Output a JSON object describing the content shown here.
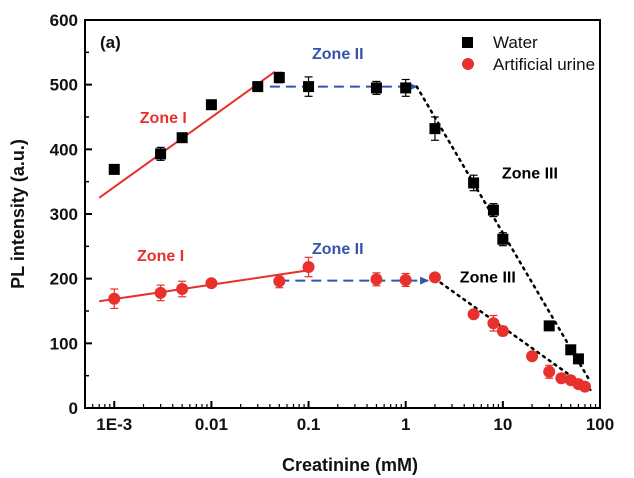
{
  "chart_data": {
    "type": "scatter",
    "panel_label": "(a)",
    "title": "",
    "xlabel": "Creatinine (mM)",
    "ylabel": "PL intensity (a.u.)",
    "xscale": "log",
    "xlim": [
      0.0005,
      100
    ],
    "ylim": [
      0,
      600
    ],
    "x_ticks": [
      0.001,
      0.01,
      0.1,
      1,
      10,
      100
    ],
    "x_tick_labels": [
      "1E-3",
      "0.01",
      "0.1",
      "1",
      "10",
      "100"
    ],
    "y_ticks": [
      0,
      100,
      200,
      300,
      400,
      500,
      600
    ],
    "y_tick_labels": [
      "0",
      "100",
      "200",
      "300",
      "400",
      "500",
      "600"
    ],
    "grid": false,
    "legend_position": "top-right",
    "series": [
      {
        "name": "Water",
        "color": "#000000",
        "marker": "square",
        "points": [
          {
            "x": 0.001,
            "y": 369,
            "err": 0
          },
          {
            "x": 0.003,
            "y": 393,
            "err": 10
          },
          {
            "x": 0.005,
            "y": 418,
            "err": 0
          },
          {
            "x": 0.01,
            "y": 469,
            "err": 0
          },
          {
            "x": 0.03,
            "y": 497,
            "err": 0
          },
          {
            "x": 0.05,
            "y": 511,
            "err": 8
          },
          {
            "x": 0.1,
            "y": 497,
            "err": 15
          },
          {
            "x": 0.5,
            "y": 495,
            "err": 10
          },
          {
            "x": 1,
            "y": 495,
            "err": 13
          },
          {
            "x": 2,
            "y": 432,
            "err": 18
          },
          {
            "x": 5,
            "y": 348,
            "err": 12
          },
          {
            "x": 8,
            "y": 306,
            "err": 10
          },
          {
            "x": 10,
            "y": 261,
            "err": 10
          },
          {
            "x": 30,
            "y": 127,
            "err": 0
          },
          {
            "x": 50,
            "y": 90,
            "err": 0
          },
          {
            "x": 60,
            "y": 76,
            "err": 0
          }
        ]
      },
      {
        "name": "Artificial urine",
        "color": "#e8302c",
        "marker": "circle",
        "points": [
          {
            "x": 0.001,
            "y": 169,
            "err": 15
          },
          {
            "x": 0.003,
            "y": 178,
            "err": 12
          },
          {
            "x": 0.005,
            "y": 184,
            "err": 12
          },
          {
            "x": 0.01,
            "y": 193,
            "err": 5
          },
          {
            "x": 0.05,
            "y": 196,
            "err": 10
          },
          {
            "x": 0.1,
            "y": 218,
            "err": 15
          },
          {
            "x": 0.5,
            "y": 199,
            "err": 10
          },
          {
            "x": 1,
            "y": 198,
            "err": 10
          },
          {
            "x": 2,
            "y": 202,
            "err": 5
          },
          {
            "x": 5,
            "y": 145,
            "err": 0
          },
          {
            "x": 8,
            "y": 131,
            "err": 12
          },
          {
            "x": 10,
            "y": 119,
            "err": 7
          },
          {
            "x": 20,
            "y": 80,
            "err": 5
          },
          {
            "x": 30,
            "y": 56,
            "err": 10
          },
          {
            "x": 40,
            "y": 46,
            "err": 5
          },
          {
            "x": 50,
            "y": 43,
            "err": 5
          },
          {
            "x": 60,
            "y": 37,
            "err": 5
          },
          {
            "x": 70,
            "y": 33,
            "err": 5
          }
        ]
      }
    ],
    "fit_lines": [
      {
        "name": "water-zone1-fit",
        "style": "solid",
        "color": "#e8302c",
        "from": [
          0.0007,
          325
        ],
        "to": [
          0.045,
          520
        ]
      },
      {
        "name": "water-zone2-fit",
        "style": "dashed",
        "color": "#3355aa",
        "from": [
          0.04,
          497
        ],
        "to": [
          1.3,
          497
        ],
        "arrow": true
      },
      {
        "name": "water-zone3-fit",
        "style": "dotted",
        "color": "#000000",
        "from": [
          1.3,
          497
        ],
        "to": [
          80,
          40
        ]
      },
      {
        "name": "urine-zone1-fit",
        "style": "solid",
        "color": "#e8302c",
        "from": [
          0.0007,
          165
        ],
        "to": [
          0.1,
          213
        ]
      },
      {
        "name": "urine-zone2-fit",
        "style": "dashed",
        "color": "#3355aa",
        "from": [
          0.05,
          197
        ],
        "to": [
          1.7,
          197
        ],
        "arrow": true
      },
      {
        "name": "urine-zone3-fit",
        "style": "dotted",
        "color": "#000000",
        "from": [
          2,
          200
        ],
        "to": [
          85,
          25
        ]
      }
    ],
    "annotations": [
      {
        "text": "Zone I",
        "x": 0.0032,
        "y": 441,
        "color": "#e8302c"
      },
      {
        "text": "Zone II",
        "x": 0.2,
        "y": 540,
        "color": "#3355aa"
      },
      {
        "text": "Zone III",
        "x": 19,
        "y": 355,
        "color": "#000000"
      },
      {
        "text": "Zone I",
        "x": 0.003,
        "y": 227,
        "color": "#e8302c"
      },
      {
        "text": "Zone II",
        "x": 0.2,
        "y": 238,
        "color": "#3355aa"
      },
      {
        "text": "Zone III",
        "x": 7,
        "y": 194,
        "color": "#000000"
      }
    ]
  }
}
